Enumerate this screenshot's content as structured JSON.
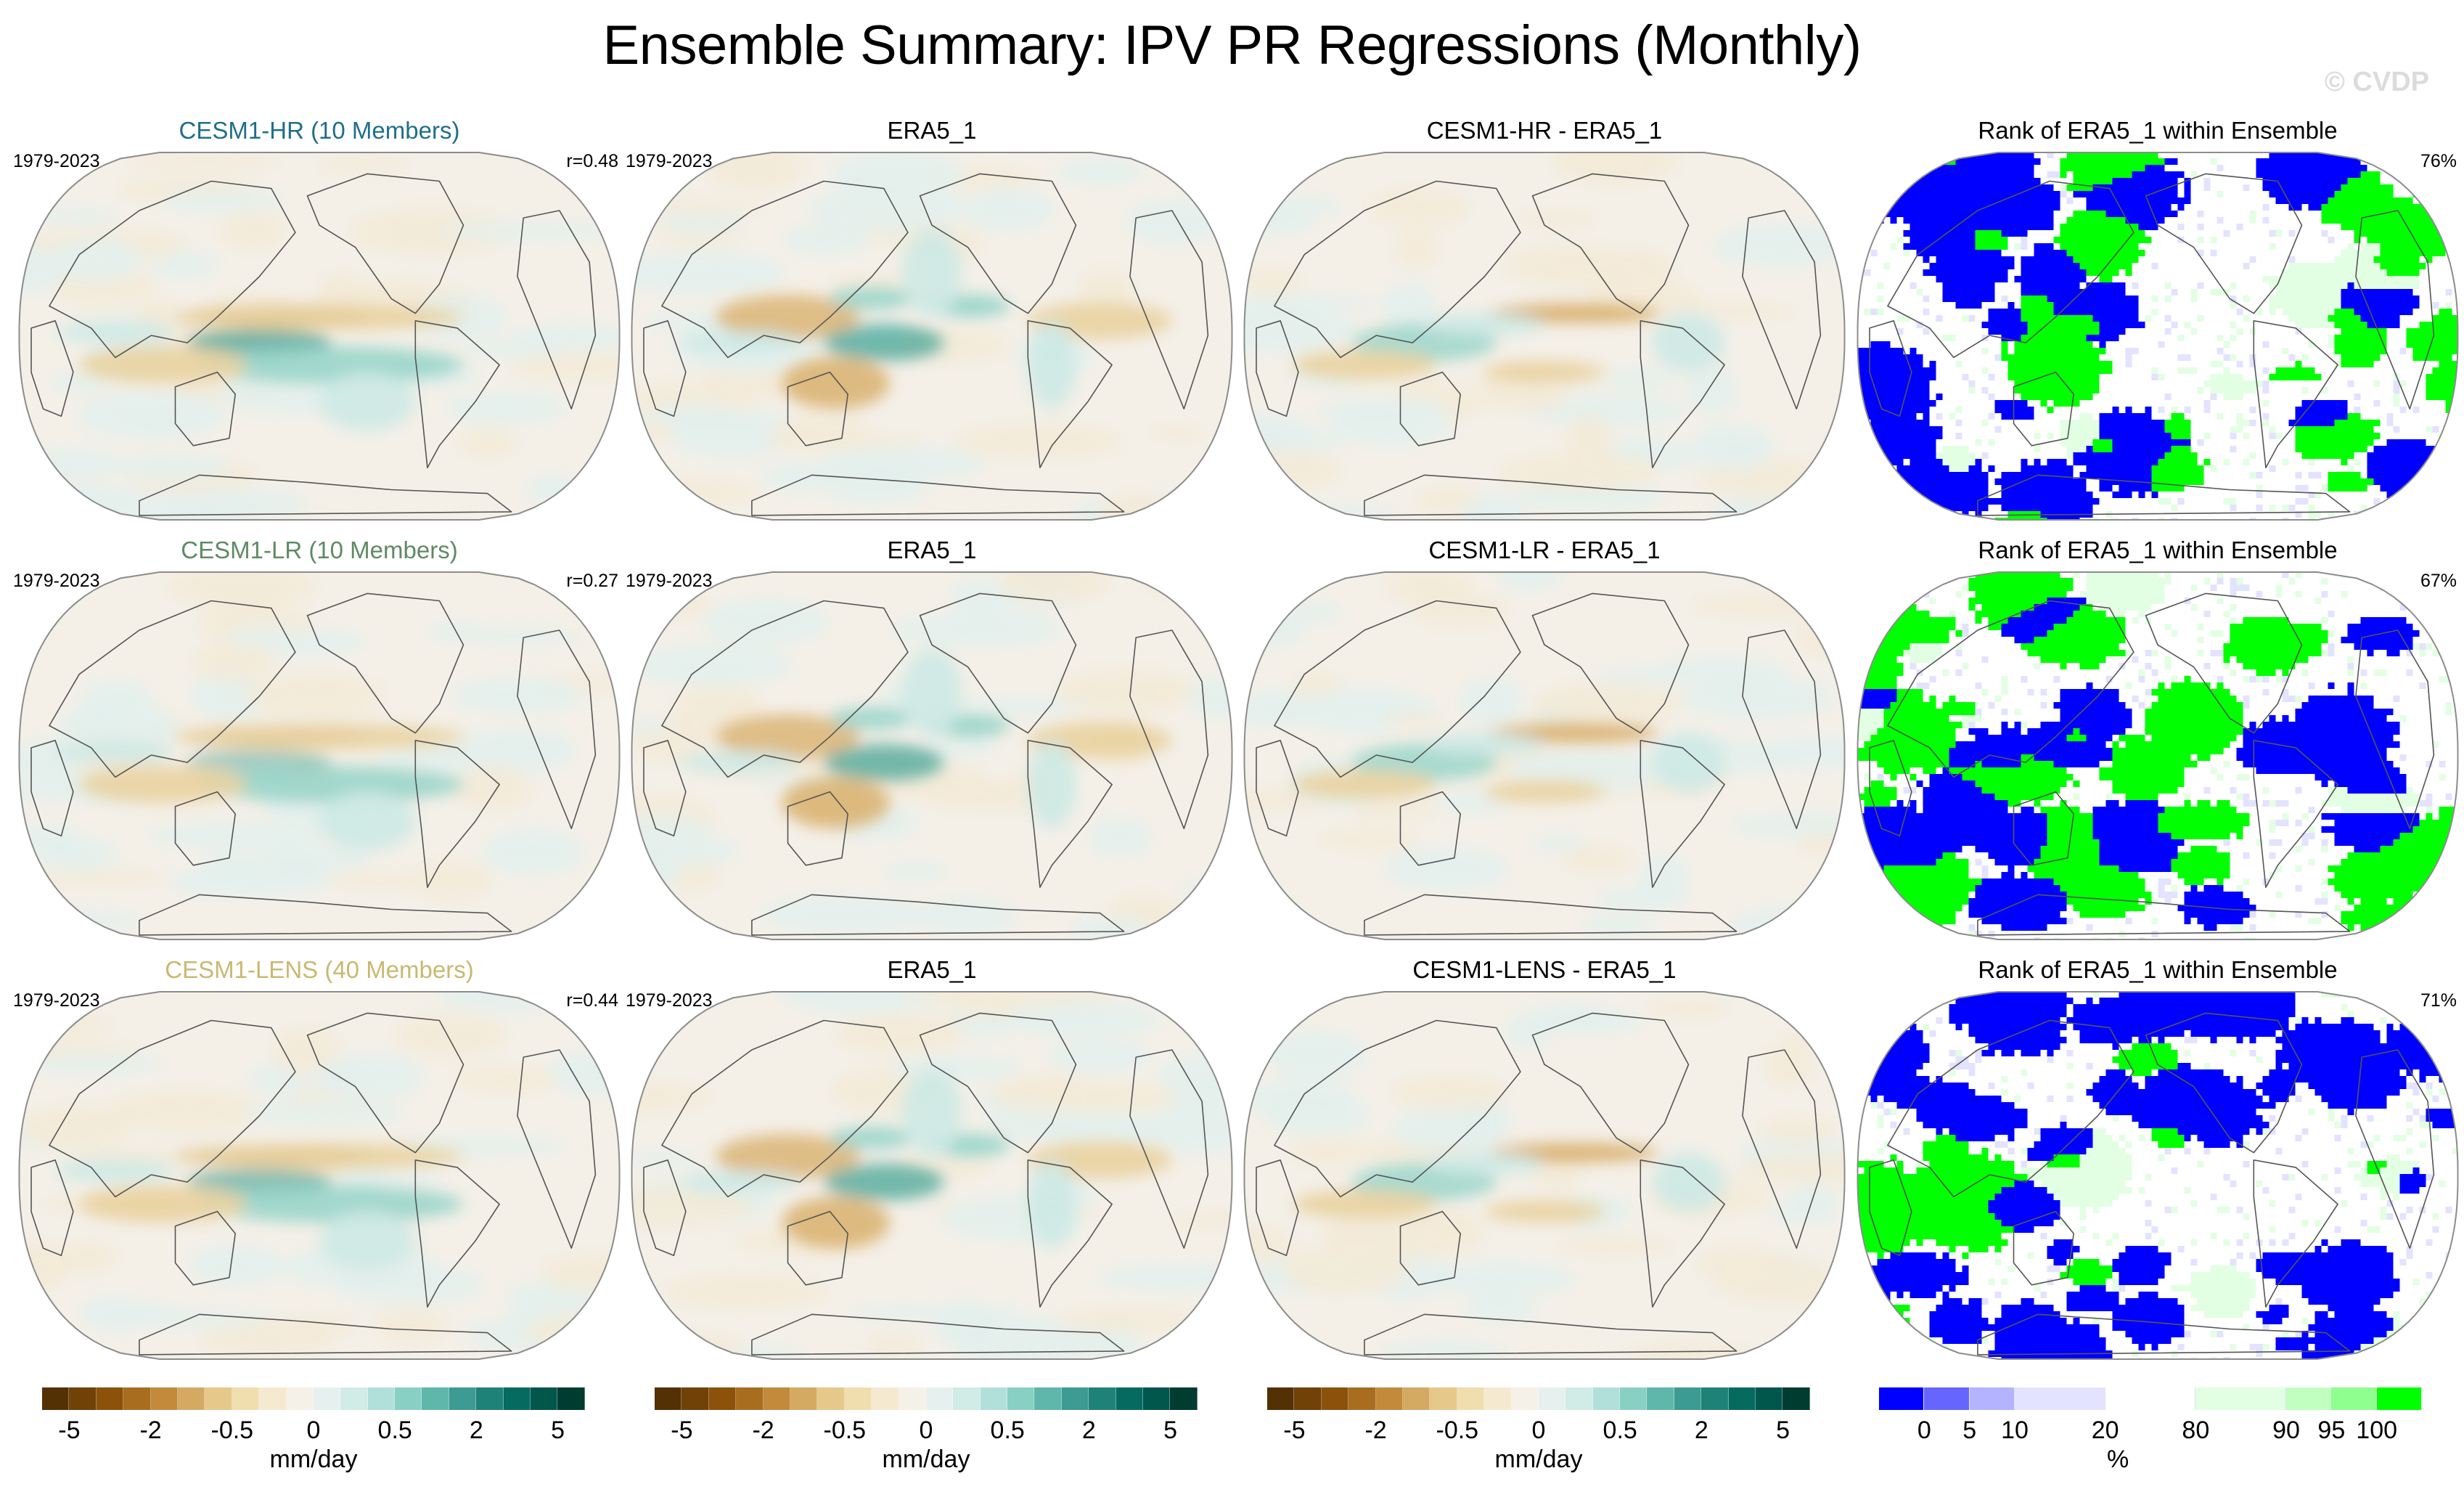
{
  "title": "Ensemble Summary: IPV PR Regressions (Monthly)",
  "watermark": "© CVDP",
  "chart_data": {
    "type": "heatmap",
    "title": "Ensemble Summary: IPV PR Regressions (Monthly)",
    "variable": "PR regression on IPV",
    "units": "mm/day",
    "period": "1979-2023",
    "rows": [
      {
        "model": "CESM1-HR (10 Members)",
        "model_color": "#1f6f8b",
        "pattern_correlation": "r=0.48",
        "panels": [
          {
            "title": "CESM1-HR (10 Members)",
            "kind": "ensemble_mean",
            "period": "1979-2023",
            "stat": "r=0.48"
          },
          {
            "title": "ERA5_1",
            "kind": "observation",
            "period": "1979-2023",
            "stat": ""
          },
          {
            "title": "CESM1-HR - ERA5_1",
            "kind": "difference",
            "period": "",
            "stat": ""
          },
          {
            "title": "Rank of ERA5_1 within Ensemble",
            "kind": "rank",
            "period": "",
            "stat": "76%"
          }
        ]
      },
      {
        "model": "CESM1-LR (10 Members)",
        "model_color": "#5f8a64",
        "pattern_correlation": "r=0.27",
        "panels": [
          {
            "title": "CESM1-LR (10 Members)",
            "kind": "ensemble_mean",
            "period": "1979-2023",
            "stat": "r=0.27"
          },
          {
            "title": "ERA5_1",
            "kind": "observation",
            "period": "1979-2023",
            "stat": ""
          },
          {
            "title": "CESM1-LR - ERA5_1",
            "kind": "difference",
            "period": "",
            "stat": ""
          },
          {
            "title": "Rank of ERA5_1 within Ensemble",
            "kind": "rank",
            "period": "",
            "stat": "67%"
          }
        ]
      },
      {
        "model": "CESM1-LENS (40 Members)",
        "model_color": "#c9b870",
        "pattern_correlation": "r=0.44",
        "panels": [
          {
            "title": "CESM1-LENS (40 Members)",
            "kind": "ensemble_mean",
            "period": "1979-2023",
            "stat": "r=0.44"
          },
          {
            "title": "ERA5_1",
            "kind": "observation",
            "period": "1979-2023",
            "stat": ""
          },
          {
            "title": "CESM1-LENS - ERA5_1",
            "kind": "difference",
            "period": "",
            "stat": ""
          },
          {
            "title": "Rank of ERA5_1 within Ensemble",
            "kind": "rank",
            "period": "",
            "stat": "71%"
          }
        ]
      }
    ],
    "colorbars": [
      {
        "unit": "mm/day",
        "ticks": [
          "-5",
          "-2",
          "-0.5",
          "0",
          "0.5",
          "2",
          "5"
        ],
        "tick_positions": [
          1,
          4,
          7,
          10,
          13,
          16,
          19
        ],
        "colors": [
          "#543005",
          "#704207",
          "#8c510a",
          "#a96d20",
          "#c28a3a",
          "#d4aa62",
          "#e6c98a",
          "#f0deaf",
          "#f5ead0",
          "#f5f1e9",
          "#e6f0ee",
          "#d1ebe6",
          "#b1e0da",
          "#88d0c4",
          "#5fb7ac",
          "#3c9b92",
          "#1f8279",
          "#056b61",
          "#01574c",
          "#003c30"
        ]
      },
      {
        "unit": "mm/day",
        "ticks": [
          "-5",
          "-2",
          "-0.5",
          "0",
          "0.5",
          "2",
          "5"
        ],
        "tick_positions": [
          1,
          4,
          7,
          10,
          13,
          16,
          19
        ],
        "colors": [
          "#543005",
          "#704207",
          "#8c510a",
          "#a96d20",
          "#c28a3a",
          "#d4aa62",
          "#e6c98a",
          "#f0deaf",
          "#f5ead0",
          "#f5f1e9",
          "#e6f0ee",
          "#d1ebe6",
          "#b1e0da",
          "#88d0c4",
          "#5fb7ac",
          "#3c9b92",
          "#1f8279",
          "#056b61",
          "#01574c",
          "#003c30"
        ]
      },
      {
        "unit": "mm/day",
        "ticks": [
          "-5",
          "-2",
          "-0.5",
          "0",
          "0.5",
          "2",
          "5"
        ],
        "tick_positions": [
          1,
          4,
          7,
          10,
          13,
          16,
          19
        ],
        "colors": [
          "#543005",
          "#704207",
          "#8c510a",
          "#a96d20",
          "#c28a3a",
          "#d4aa62",
          "#e6c98a",
          "#f0deaf",
          "#f5ead0",
          "#f5f1e9",
          "#e6f0ee",
          "#d1ebe6",
          "#b1e0da",
          "#88d0c4",
          "#5fb7ac",
          "#3c9b92",
          "#1f8279",
          "#056b61",
          "#01574c",
          "#003c30"
        ]
      },
      {
        "unit": "%",
        "ticks": [
          "0",
          "5",
          "10",
          "20",
          "80",
          "90",
          "95",
          "100"
        ],
        "tick_positions": [
          1,
          2,
          3,
          5,
          7,
          9,
          10,
          11
        ],
        "colors": [
          "#0000ff",
          "#6666ff",
          "#b3b3ff",
          "#e3e3ff",
          "#e3e3ff",
          "#ffffff",
          "#ffffff",
          "#e3ffe3",
          "#e3ffe3",
          "#c0ffc0",
          "#8fff8f",
          "#00ff00"
        ],
        "widths": [
          1,
          1,
          1,
          2,
          2,
          2,
          1,
          1,
          1
        ]
      }
    ]
  },
  "rank_colors": {
    "low": "#0000ff",
    "mid_low": "#e3e3ff",
    "neutral": "#ffffff",
    "mid_high": "#e3ffe3",
    "high": "#00ff00"
  }
}
